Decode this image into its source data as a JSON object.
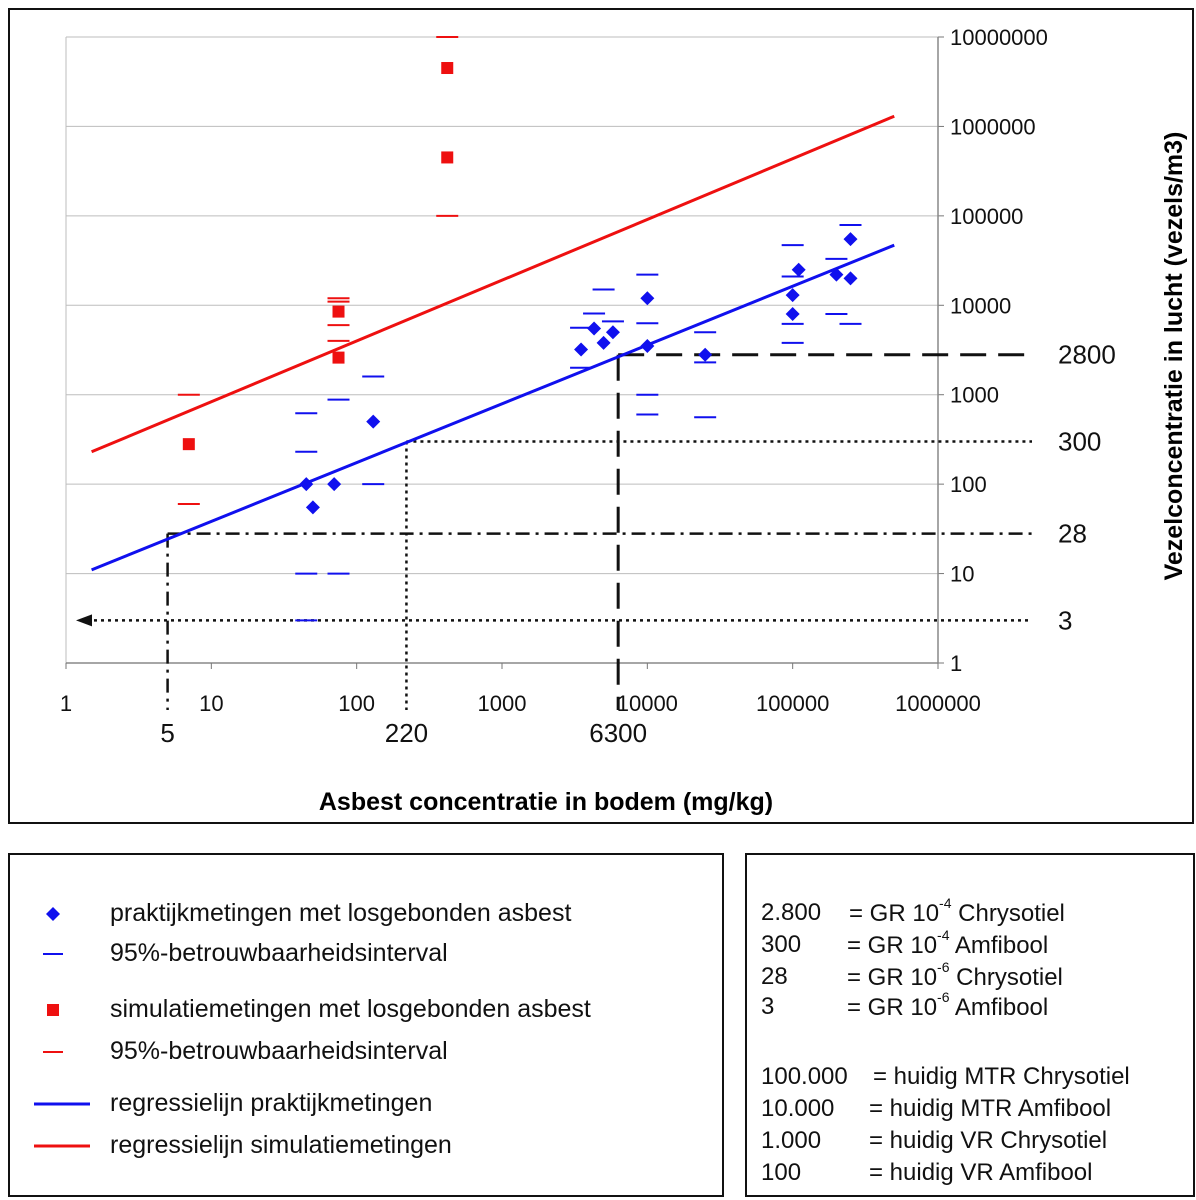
{
  "chart_data": {
    "type": "scatter",
    "title": "",
    "xlabel": "Asbest concentratie in bodem (mg/kg)",
    "ylabel": "Vezelconcentratie in lucht (vezels/m3)",
    "x_scale": "log",
    "y_scale": "log",
    "xlim": [
      1,
      1000000
    ],
    "ylim": [
      1,
      10000000
    ],
    "grid": true,
    "x_ticks": [
      "1",
      "10",
      "100",
      "1000",
      "10000",
      "100000",
      "1000000"
    ],
    "y_ticks": [
      "1",
      "10",
      "100",
      "1000",
      "10000",
      "100000",
      "1000000",
      "10000000"
    ],
    "series": [
      {
        "name": "praktijkmetingen met losgebonden asbest",
        "color": "#1010ee",
        "marker": "diamond",
        "points": [
          [
            45,
            100
          ],
          [
            50,
            55
          ],
          [
            70,
            100
          ],
          [
            130,
            500
          ],
          [
            3500,
            3200
          ],
          [
            4300,
            5500
          ],
          [
            5000,
            3800
          ],
          [
            5800,
            5000
          ],
          [
            10000,
            12000
          ],
          [
            10000,
            3500
          ],
          [
            25000,
            2800
          ],
          [
            100000,
            13000
          ],
          [
            100000,
            8000
          ],
          [
            110000,
            25000
          ],
          [
            200000,
            22000
          ],
          [
            250000,
            20000
          ],
          [
            250000,
            55000
          ]
        ]
      },
      {
        "name": "95%-betrouwbaarheidsinterval",
        "color": "#1010ee",
        "marker": "dash",
        "points": [
          [
            45,
            620
          ],
          [
            45,
            230
          ],
          [
            45,
            10
          ],
          [
            45,
            3
          ],
          [
            75,
            880
          ],
          [
            75,
            10
          ],
          [
            130,
            1600
          ],
          [
            130,
            100
          ],
          [
            3500,
            5600
          ],
          [
            3500,
            2000
          ],
          [
            4300,
            8100
          ],
          [
            5000,
            15000
          ],
          [
            5800,
            6600
          ],
          [
            10000,
            22000
          ],
          [
            10000,
            6300
          ],
          [
            10000,
            1000
          ],
          [
            10000,
            600
          ],
          [
            25000,
            5000
          ],
          [
            25000,
            2300
          ],
          [
            25000,
            560
          ],
          [
            100000,
            47000
          ],
          [
            100000,
            21000
          ],
          [
            100000,
            6200
          ],
          [
            100000,
            3800
          ],
          [
            200000,
            33000
          ],
          [
            200000,
            8000
          ],
          [
            250000,
            79000
          ],
          [
            250000,
            6200
          ]
        ]
      },
      {
        "name": "simulatiemetingen met losgebonden asbest",
        "color": "#ee1010",
        "marker": "square",
        "points": [
          [
            7,
            280
          ],
          [
            75,
            8500
          ],
          [
            75,
            2600
          ],
          [
            420,
            4500000
          ],
          [
            420,
            450000
          ]
        ]
      },
      {
        "name": "95%-betrouwbaarheidsinterval",
        "color": "#ee1010",
        "marker": "dash",
        "points": [
          [
            7,
            1000
          ],
          [
            7,
            60
          ],
          [
            75,
            12000
          ],
          [
            75,
            11000
          ],
          [
            75,
            6000
          ],
          [
            75,
            4000
          ],
          [
            420,
            10000000
          ],
          [
            420,
            100000
          ]
        ]
      },
      {
        "name": "regressielijn praktijkmetingen",
        "color": "#1010ee",
        "type": "line",
        "points": [
          [
            1.5,
            11
          ],
          [
            500000,
            47000
          ]
        ]
      },
      {
        "name": "regressielijn simulatiemetingen",
        "color": "#ee1010",
        "type": "line",
        "points": [
          [
            1.5,
            230
          ],
          [
            500000,
            1300000
          ]
        ]
      }
    ],
    "reference_lines": [
      {
        "label": "2800",
        "y": 2800,
        "x": 6300,
        "style": "dashed"
      },
      {
        "label": "300",
        "y": 300,
        "x": 220,
        "style": "dotted"
      },
      {
        "label": "28",
        "y": 28,
        "x": 5,
        "style": "dashdot"
      },
      {
        "label": "3",
        "y": 3,
        "style": "dotted-arrow"
      }
    ],
    "reference_x_labels": [
      "5",
      "220",
      "6300"
    ]
  },
  "legend": {
    "items": [
      {
        "label": "praktijkmetingen met losgebonden asbest",
        "symbol": "diamond",
        "color": "#1010ee"
      },
      {
        "label": "95%-betrouwbaarheidsinterval",
        "symbol": "dash",
        "color": "#1010ee"
      },
      {
        "label": "simulatiemetingen met losgebonden asbest",
        "symbol": "square",
        "color": "#ee1010"
      },
      {
        "label": "95%-betrouwbaarheidsinterval",
        "symbol": "dash",
        "color": "#ee1010"
      },
      {
        "label": "regressielijn praktijkmetingen",
        "symbol": "line",
        "color": "#1010ee"
      },
      {
        "label": "regressielijn simulatiemetingen",
        "symbol": "line",
        "color": "#ee1010"
      }
    ]
  },
  "notes": {
    "gr": [
      {
        "value": "2.800",
        "eq": "= GR 10",
        "exp": "-4",
        "substance": "Chrysotiel"
      },
      {
        "value": "300",
        "eq": "= GR 10",
        "exp": "-4",
        "substance": "Amfibool"
      },
      {
        "value": "28",
        "eq": "= GR 10",
        "exp": "-6",
        "substance": "Chrysotiel"
      },
      {
        "value": "3",
        "eq": "= GR 10",
        "exp": "-6",
        "substance": "Amfibool"
      }
    ],
    "limits": [
      {
        "value": "100.000",
        "text": "= huidig MTR Chrysotiel"
      },
      {
        "value": "10.000",
        "text": "= huidig MTR Amfibool"
      },
      {
        "value": "1.000",
        "text": "= huidig VR Chrysotiel"
      },
      {
        "value": "100",
        "text": "= huidig VR Amfibool"
      }
    ]
  }
}
